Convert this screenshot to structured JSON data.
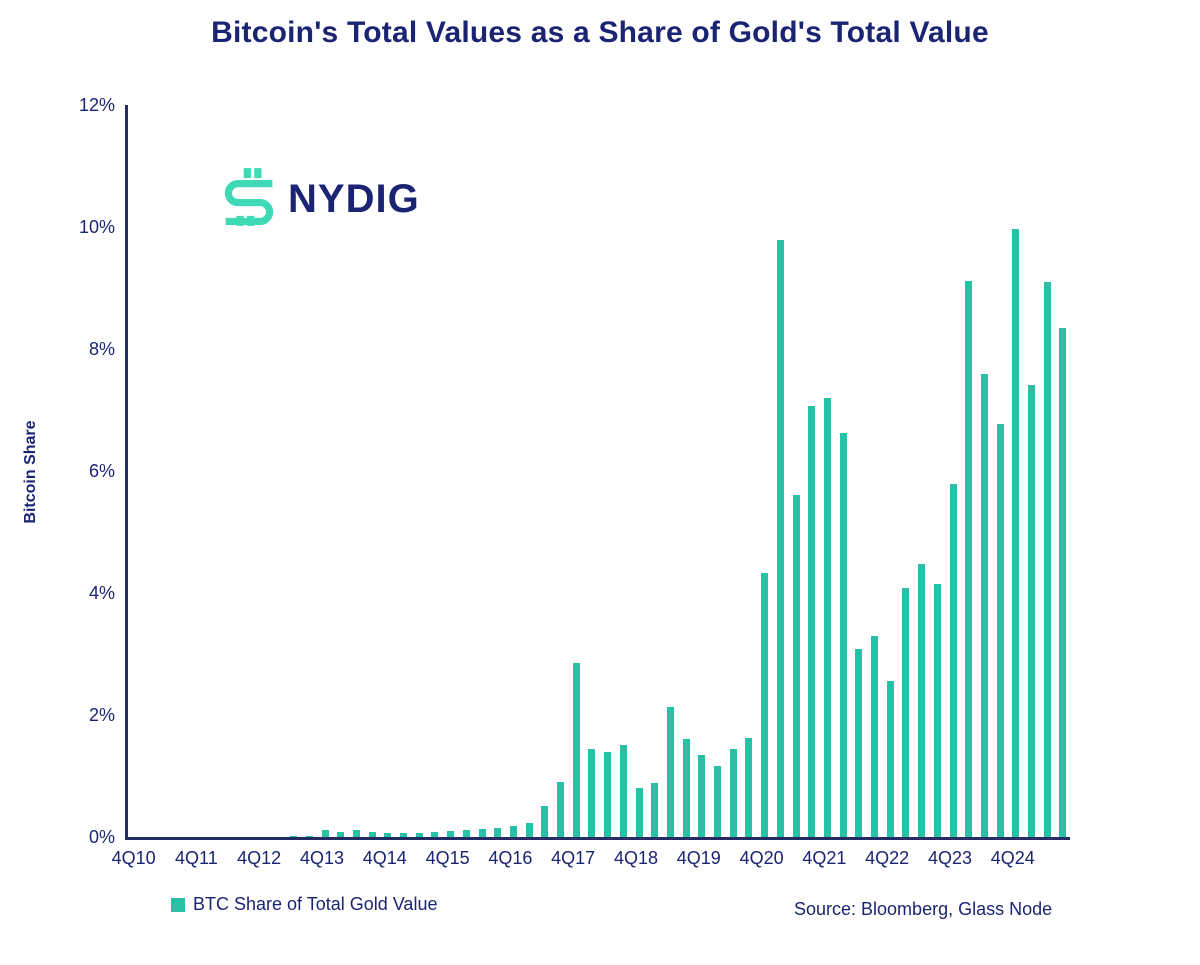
{
  "title": "Bitcoin's Total Values as a Share of Gold's Total Value",
  "logo": {
    "text": "NYDIG",
    "icon": "nydig-dollar-mark-icon",
    "icon_color": "#3ED9B5",
    "text_color": "#1B2472"
  },
  "legend": {
    "label": "BTC Share of Total Gold Value",
    "swatch_color": "#27C2A6"
  },
  "source": "Source: Bloomberg, Glass Node",
  "colors": {
    "bar": "#27C2A6",
    "navy_text": "#1B2472",
    "axis_line": "#232C63",
    "background": "#FFFFFF"
  },
  "y_axis": {
    "label": "Bitcoin Share",
    "tick_labels": [
      "0%",
      "2%",
      "4%",
      "6%",
      "8%",
      "10%",
      "12%"
    ],
    "tick_values": [
      0,
      2,
      4,
      6,
      8,
      10,
      12
    ]
  },
  "x_axis": {
    "tick_labels": [
      "4Q10",
      "4Q11",
      "4Q12",
      "4Q13",
      "4Q14",
      "4Q15",
      "4Q16",
      "4Q17",
      "4Q18",
      "4Q19",
      "4Q20",
      "4Q21",
      "4Q22",
      "4Q23",
      "4Q24"
    ],
    "ticks_every_n_bars": 4
  },
  "chart_data": {
    "type": "bar",
    "title": "Bitcoin's Total Values as a Share of Gold's Total Value",
    "xlabel": "",
    "ylabel": "Bitcoin Share",
    "ylim": [
      0,
      12
    ],
    "y_unit": "%",
    "grid": false,
    "legend_position": "bottom-left",
    "series_name": "BTC Share of Total Gold Value",
    "x": [
      "4Q10",
      "1Q11",
      "2Q11",
      "3Q11",
      "4Q11",
      "1Q12",
      "2Q12",
      "3Q12",
      "4Q12",
      "1Q13",
      "2Q13",
      "3Q13",
      "4Q13",
      "1Q14",
      "2Q14",
      "3Q14",
      "4Q14",
      "1Q15",
      "2Q15",
      "3Q15",
      "4Q15",
      "1Q16",
      "2Q16",
      "3Q16",
      "4Q16",
      "1Q17",
      "2Q17",
      "3Q17",
      "4Q17",
      "1Q18",
      "2Q18",
      "3Q18",
      "4Q18",
      "1Q19",
      "2Q19",
      "3Q19",
      "4Q19",
      "1Q20",
      "2Q20",
      "3Q20",
      "4Q20",
      "1Q21",
      "2Q21",
      "3Q21",
      "4Q21",
      "1Q22",
      "2Q22",
      "3Q22",
      "4Q22",
      "1Q23",
      "2Q23",
      "3Q23",
      "4Q23",
      "1Q24",
      "2Q24",
      "3Q24",
      "4Q24",
      "1Q25",
      "2Q25",
      "3Q25"
    ],
    "values": [
      0,
      0,
      0,
      0,
      0,
      0,
      0,
      0,
      0,
      0,
      0.01,
      0.02,
      0.12,
      0.08,
      0.11,
      0.08,
      0.07,
      0.06,
      0.07,
      0.08,
      0.1,
      0.12,
      0.13,
      0.14,
      0.18,
      0.23,
      0.5,
      0.9,
      2.86,
      1.44,
      1.4,
      1.51,
      0.81,
      0.88,
      2.13,
      1.6,
      1.34,
      1.16,
      1.45,
      1.63,
      4.33,
      9.79,
      5.6,
      7.07,
      7.19,
      6.63,
      3.08,
      3.3,
      2.55,
      4.09,
      4.48,
      4.14,
      5.79,
      9.12,
      7.59,
      6.77,
      9.97,
      7.41,
      9.1,
      8.35
    ]
  }
}
